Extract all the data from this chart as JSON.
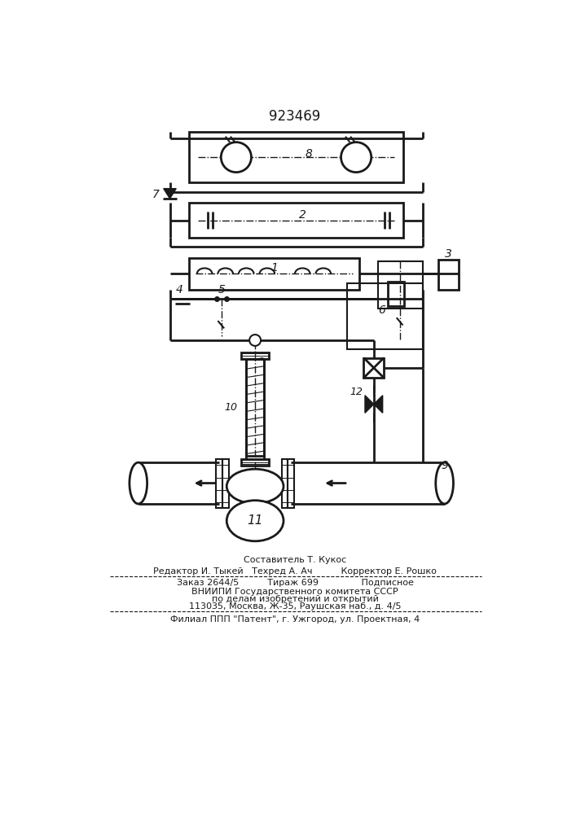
{
  "title": "923469",
  "bg_color": "#ffffff",
  "line_color": "#1a1a1a",
  "footer_lines": [
    "Составитель Т. Кукос",
    "Редактор И. Тыкей   Техред А. Ач          Корректор Е. Рошко",
    "Заказ 2644/5          Тираж 699               Подписное",
    "ВНИИПИ Государственного комитета СССР",
    "по делам изобретений и открытий",
    "113035, Москва, Ж-35, Раушская наб., д. 4/5",
    "Филиал ППП \"Патент\", г. Ужгород, ул. Проектная, 4"
  ]
}
